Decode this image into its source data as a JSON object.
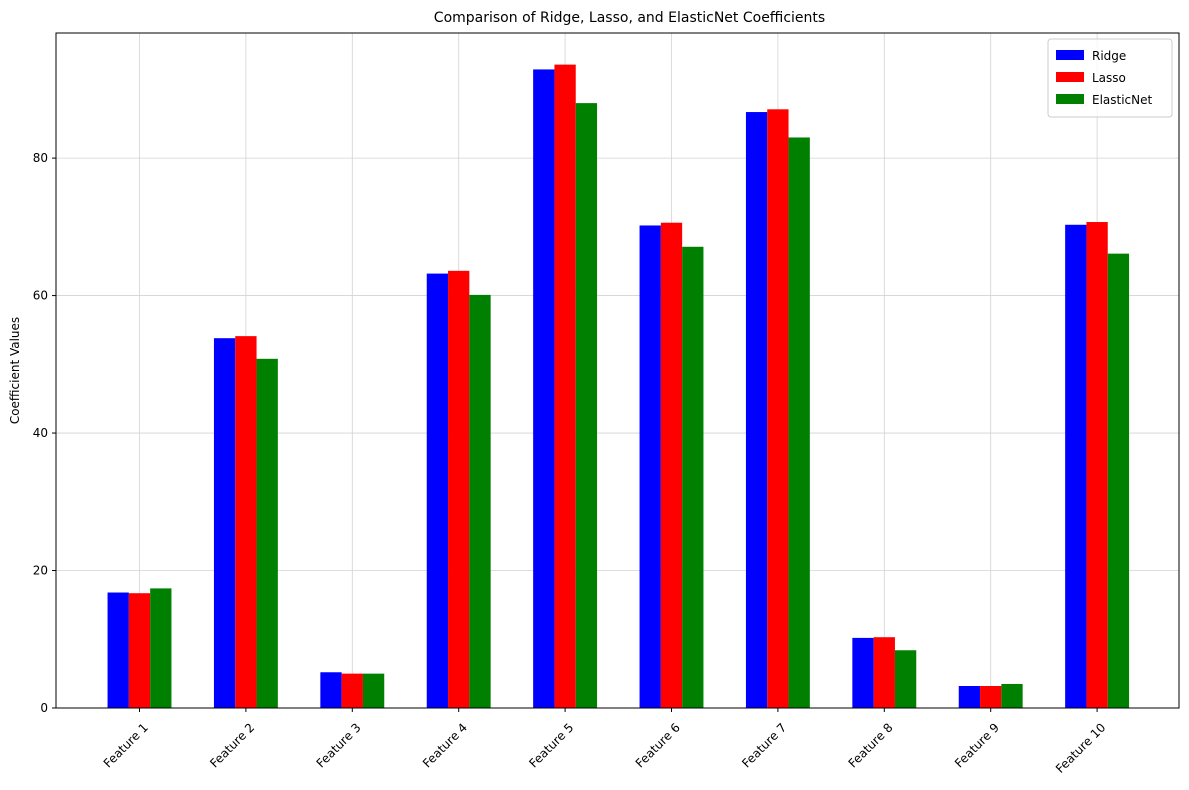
{
  "chart_data": {
    "type": "bar",
    "title": "Comparison of Ridge, Lasso, and ElasticNet Coefficients",
    "xlabel": "",
    "ylabel": "Coefficient Values",
    "categories": [
      "Feature 1",
      "Feature 2",
      "Feature 3",
      "Feature 4",
      "Feature 5",
      "Feature 6",
      "Feature 7",
      "Feature 8",
      "Feature 9",
      "Feature 10"
    ],
    "series": [
      {
        "name": "Ridge",
        "color": "#0000ff",
        "values": [
          16.8,
          53.8,
          5.2,
          63.2,
          92.9,
          70.2,
          86.7,
          10.2,
          3.2,
          70.3
        ]
      },
      {
        "name": "Lasso",
        "color": "#ff0000",
        "values": [
          16.7,
          54.1,
          5.0,
          63.6,
          93.6,
          70.6,
          87.1,
          10.3,
          3.2,
          70.7
        ]
      },
      {
        "name": "ElasticNet",
        "color": "#008000",
        "values": [
          17.4,
          50.8,
          5.0,
          60.1,
          88.0,
          67.1,
          83.0,
          8.4,
          3.5,
          66.1
        ]
      }
    ],
    "yticks": [
      "0",
      "20",
      "40",
      "60",
      "80"
    ],
    "ylim": [
      0,
      98.2
    ],
    "grid": true,
    "legend_position": "top-right"
  }
}
